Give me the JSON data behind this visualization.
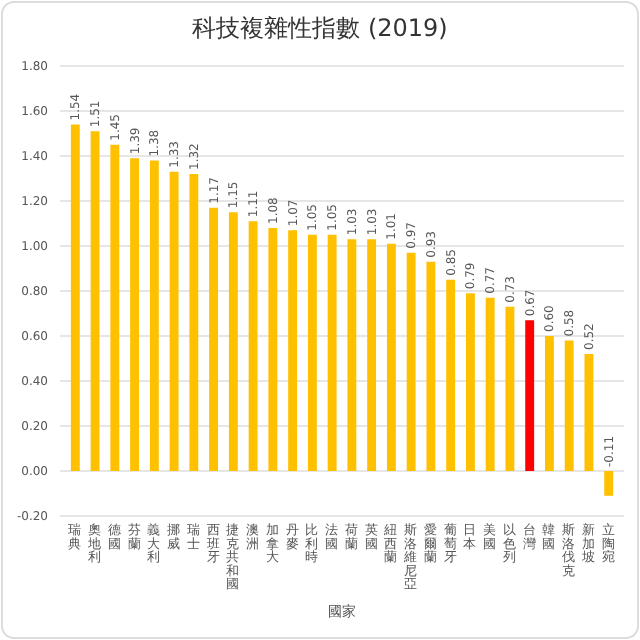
{
  "chart_data": {
    "type": "bar",
    "title": "科技複雜性指數 (2019)",
    "xlabel": "國家",
    "categories": [
      "瑞典",
      "奧地利",
      "德國",
      "芬蘭",
      "義大利",
      "挪威",
      "瑞士",
      "西班牙",
      "捷克共和國",
      "澳洲",
      "加拿大",
      "丹麥",
      "比利時",
      "法國",
      "荷蘭",
      "英國",
      "紐西蘭",
      "斯洛維尼亞",
      "愛爾蘭",
      "葡萄牙",
      "日本",
      "美國",
      "以色列",
      "台灣",
      "韓國",
      "斯洛伐克",
      "新加坡",
      "立陶宛"
    ],
    "values": [
      1.54,
      1.51,
      1.45,
      1.39,
      1.38,
      1.33,
      1.32,
      1.17,
      1.15,
      1.11,
      1.08,
      1.07,
      1.05,
      1.05,
      1.03,
      1.03,
      1.01,
      0.97,
      0.93,
      0.85,
      0.79,
      0.77,
      0.73,
      0.67,
      0.6,
      0.58,
      0.52,
      -0.11
    ],
    "colors": [
      "#ffc000",
      "#ffc000",
      "#ffc000",
      "#ffc000",
      "#ffc000",
      "#ffc000",
      "#ffc000",
      "#ffc000",
      "#ffc000",
      "#ffc000",
      "#ffc000",
      "#ffc000",
      "#ffc000",
      "#ffc000",
      "#ffc000",
      "#ffc000",
      "#ffc000",
      "#ffc000",
      "#ffc000",
      "#ffc000",
      "#ffc000",
      "#ffc000",
      "#ffc000",
      "#ff0000",
      "#ffc000",
      "#ffc000",
      "#ffc000",
      "#ffc000"
    ],
    "ylim": [
      -0.2,
      1.8
    ],
    "yticks": [
      {
        "value": -0.2,
        "label": "-0.20"
      },
      {
        "value": 0,
        "label": "0.00"
      },
      {
        "value": 0.2,
        "label": "0.20"
      },
      {
        "value": 0.4,
        "label": "0.40"
      },
      {
        "value": 0.6,
        "label": "0.60"
      },
      {
        "value": 0.8,
        "label": "0.80"
      },
      {
        "value": 1,
        "label": "1.00"
      },
      {
        "value": 1.2,
        "label": "1.20"
      },
      {
        "value": 1.4,
        "label": "1.40"
      },
      {
        "value": 1.6,
        "label": "1.60"
      },
      {
        "value": 1.8,
        "label": "1.80"
      }
    ],
    "value_labels": [
      "1.54",
      "1.51",
      "1.45",
      "1.39",
      "1.38",
      "1.33",
      "1.32",
      "1.17",
      "1.15",
      "1.11",
      "1.08",
      "1.07",
      "1.05",
      "1.05",
      "1.03",
      "1.03",
      "1.01",
      "0.97",
      "0.93",
      "0.85",
      "0.79",
      "0.77",
      "0.73",
      "0.67",
      "0.60",
      "0.58",
      "0.52",
      "-0.11"
    ],
    "grid": "y"
  }
}
